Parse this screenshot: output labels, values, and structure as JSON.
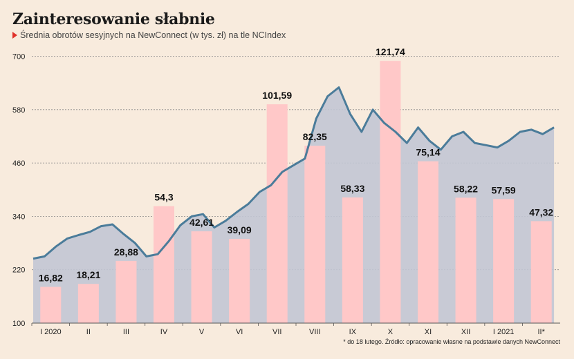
{
  "title": "Zainteresowanie słabnie",
  "subtitle": "Średnia obrotów sesyjnych na NewConnect (w tys. zł) na tle NCIndex",
  "footnote": "* do 18 lutego. Źródło: opracowanie własne na podstawie danych NewConnect",
  "colors": {
    "bar": "#ffc8c8",
    "line": "#4b7c9a",
    "area": "#c2c6d4",
    "grid": "#888888",
    "marker": "#e0312a"
  },
  "chart_data": {
    "type": "bar",
    "categories": [
      "I 2020",
      "II",
      "III",
      "IV",
      "V",
      "VI",
      "VII",
      "VIII",
      "IX",
      "X",
      "XI",
      "XII",
      "I 2021",
      "II*"
    ],
    "bar_values": [
      16.82,
      18.21,
      28.88,
      54.3,
      42.61,
      39.09,
      101.59,
      82.35,
      58.33,
      121.74,
      75.14,
      58.22,
      57.59,
      47.32
    ],
    "bar_labels": [
      "16,82",
      "18,21",
      "28,88",
      "54,3",
      "42,61",
      "39,09",
      "101,59",
      "82,35",
      "58,33",
      "121,74",
      "75,14",
      "58,22",
      "57,59",
      "47,32"
    ],
    "bar_ylim": [
      0,
      130
    ],
    "y_ticks": [
      100,
      220,
      340,
      460,
      580,
      700
    ],
    "ylim": [
      100,
      740
    ],
    "line_x": [
      0,
      0.3,
      0.6,
      0.9,
      1.2,
      1.5,
      1.8,
      2.1,
      2.4,
      2.7,
      3.0,
      3.3,
      3.6,
      3.9,
      4.2,
      4.5,
      4.8,
      5.1,
      5.4,
      5.7,
      6.0,
      6.3,
      6.6,
      6.9,
      7.2,
      7.5,
      7.8,
      8.1,
      8.4,
      8.7,
      9.0,
      9.3,
      9.6,
      9.9,
      10.2,
      10.5,
      10.8,
      11.1,
      11.4,
      11.7,
      12.0,
      12.3,
      12.6,
      12.9,
      13.2,
      13.5,
      13.8
    ],
    "line_values": [
      245,
      250,
      272,
      290,
      298,
      305,
      318,
      322,
      300,
      280,
      250,
      255,
      285,
      320,
      340,
      345,
      315,
      330,
      350,
      368,
      395,
      410,
      440,
      455,
      470,
      560,
      610,
      630,
      570,
      530,
      580,
      550,
      530,
      505,
      540,
      510,
      490,
      520,
      530,
      505,
      500,
      495,
      510,
      530,
      535,
      525,
      540
    ]
  }
}
